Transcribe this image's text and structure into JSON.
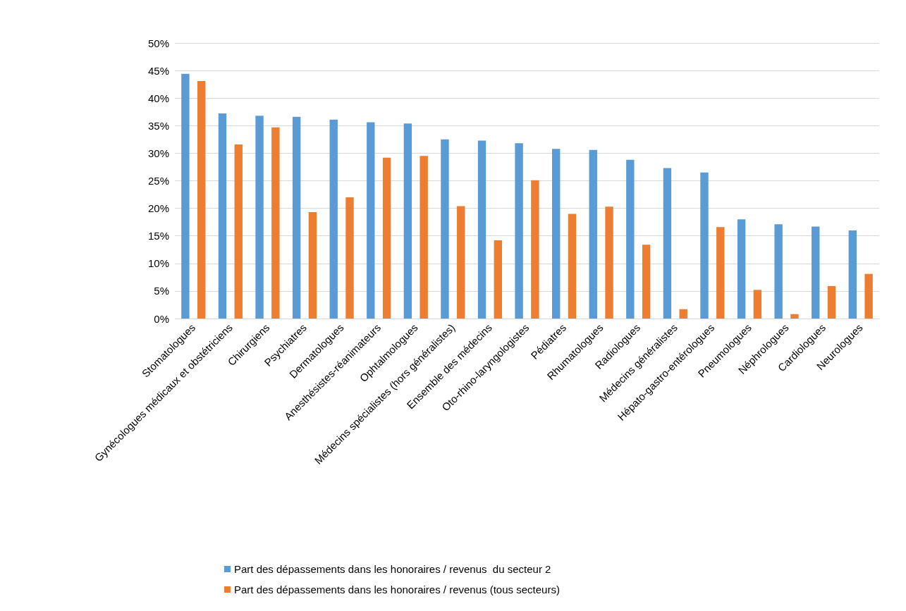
{
  "chart_data": {
    "type": "bar",
    "categories": [
      "Stomatologues",
      "Gynécologues médicaux et obstétriciens",
      "Chirurgiens",
      "Psychiatres",
      "Dermatologues",
      "Anesthésistes-réanimateurs",
      "Ophtalmologues",
      "Médecins spécialistes (hors généralistes)",
      "Ensemble des médecins",
      "Oto-rhino-laryngologistes",
      "Pédiatres",
      "Rhumatologues",
      "Radiologues",
      "Médecins généralistes",
      "Hépato-gastro-entérologues",
      "Pneumologues",
      "Néphrologues",
      "Cardiologues",
      "Neurologues"
    ],
    "series": [
      {
        "name": "Part des dépassements dans les honoraires / revenus  du secteur 2",
        "color": "#5b9bd5",
        "values": [
          44.4,
          37.2,
          36.8,
          36.6,
          36.1,
          35.6,
          35.4,
          32.5,
          32.3,
          31.8,
          30.8,
          30.6,
          28.8,
          27.3,
          26.5,
          18.0,
          17.1,
          16.7,
          16.0
        ]
      },
      {
        "name": "Part des dépassements dans les honoraires / revenus (tous secteurs)",
        "color": "#ed7d31",
        "values": [
          43.1,
          31.6,
          34.7,
          19.3,
          22.0,
          29.2,
          29.5,
          20.4,
          14.2,
          25.1,
          19.0,
          20.3,
          13.4,
          1.7,
          16.6,
          5.2,
          0.8,
          5.9,
          8.1
        ]
      }
    ],
    "ylim": [
      0,
      50
    ],
    "yticks": [
      {
        "value": 0,
        "label": "0%"
      },
      {
        "value": 5,
        "label": "5%"
      },
      {
        "value": 10,
        "label": "10%"
      },
      {
        "value": 15,
        "label": "15%"
      },
      {
        "value": 20,
        "label": "20%"
      },
      {
        "value": 25,
        "label": "25%"
      },
      {
        "value": 30,
        "label": "30%"
      },
      {
        "value": 35,
        "label": "35%"
      },
      {
        "value": 40,
        "label": "40%"
      },
      {
        "value": 45,
        "label": "45%"
      },
      {
        "value": 50,
        "label": "50%"
      }
    ],
    "grid": "y",
    "legend": "bottom"
  }
}
